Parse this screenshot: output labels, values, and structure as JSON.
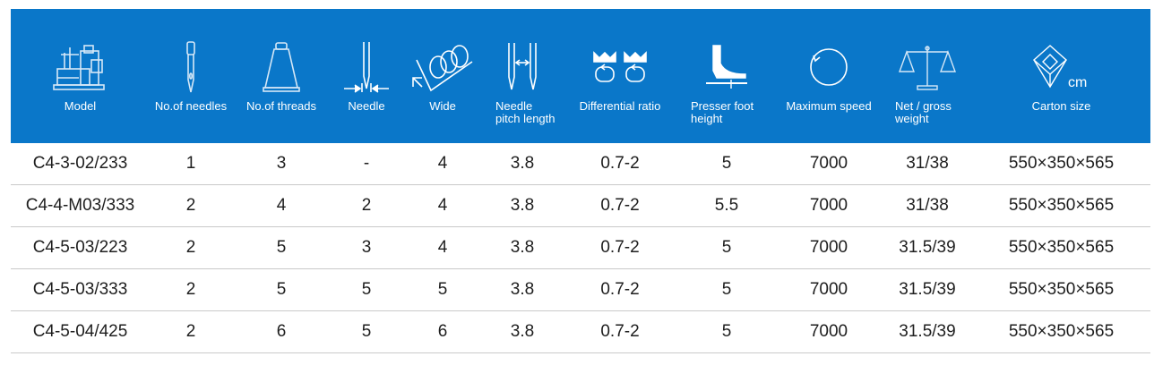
{
  "columns": [
    {
      "key": "model",
      "label": "Model",
      "icon": "sewing-machine-icon"
    },
    {
      "key": "needles",
      "label": "No.of needles",
      "icon": "needle-icon"
    },
    {
      "key": "threads",
      "label": "No.of threads",
      "icon": "thread-cone-icon"
    },
    {
      "key": "needle",
      "label": "Needle",
      "icon": "needle-gauge-icon"
    },
    {
      "key": "wide",
      "label": "Wide",
      "icon": "stitch-width-icon"
    },
    {
      "key": "pitch",
      "label": "Needle pitch length",
      "icon": "needle-pitch-icon"
    },
    {
      "key": "ratio",
      "label": "Differential ratio",
      "icon": "differential-feed-icon"
    },
    {
      "key": "presser",
      "label": "Presser foot height",
      "icon": "presser-foot-icon"
    },
    {
      "key": "speed",
      "label": "Maximum speed",
      "icon": "speed-circle-icon"
    },
    {
      "key": "weight",
      "label": "Net / gross weight",
      "icon": "balance-scale-icon"
    },
    {
      "key": "carton",
      "label": "Carton size",
      "icon": "carton-box-icon",
      "unit": "cm"
    }
  ],
  "rows": [
    [
      "C4-3-02/233",
      "1",
      "3",
      "-",
      "4",
      "3.8",
      "0.7-2",
      "5",
      "7000",
      "31/38",
      "550×350×565"
    ],
    [
      "C4-4-M03/333",
      "2",
      "4",
      "2",
      "4",
      "3.8",
      "0.7-2",
      "5.5",
      "7000",
      "31/38",
      "550×350×565"
    ],
    [
      "C4-5-03/223",
      "2",
      "5",
      "3",
      "4",
      "3.8",
      "0.7-2",
      "5",
      "7000",
      "31.5/39",
      "550×350×565"
    ],
    [
      "C4-5-03/333",
      "2",
      "5",
      "5",
      "5",
      "3.8",
      "0.7-2",
      "5",
      "7000",
      "31.5/39",
      "550×350×565"
    ],
    [
      "C4-5-04/425",
      "2",
      "6",
      "5",
      "6",
      "3.8",
      "0.7-2",
      "5",
      "7000",
      "31.5/39",
      "550×350×565"
    ]
  ],
  "colors": {
    "header_bg": "#0a77c9",
    "header_fg": "#ffffff",
    "line_art": "#d6e8f7",
    "body_text": "#1e1e1e"
  }
}
